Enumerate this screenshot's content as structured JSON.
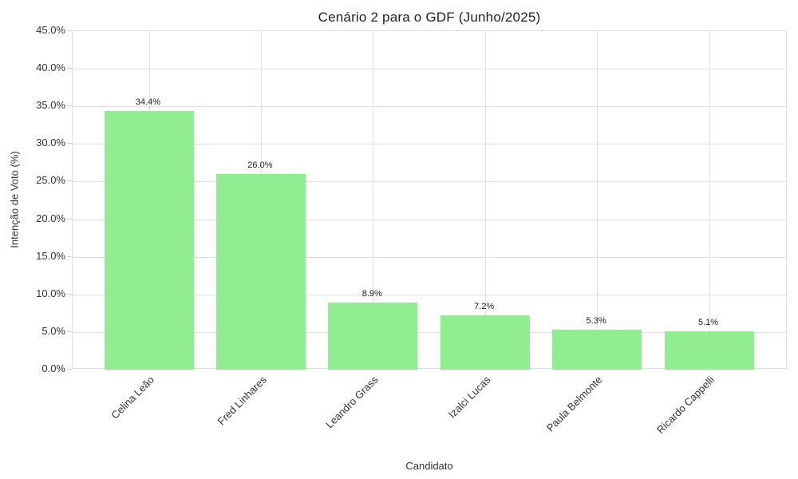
{
  "chart_data": {
    "type": "bar",
    "title": "Cenário 2 para o GDF (Junho/2025)",
    "xlabel": "Candidato",
    "ylabel": "Intenção de Voto (%)",
    "categories": [
      "Celina Leão",
      "Fred Linhares",
      "Leandro Grass",
      "Izalci Lucas",
      "Paula Belmonte",
      "Ricardo Cappelli"
    ],
    "values": [
      34.4,
      26.0,
      8.9,
      7.2,
      5.3,
      5.1
    ],
    "value_labels": [
      "34.4%",
      "26.0%",
      "8.9%",
      "7.2%",
      "5.3%",
      "5.1%"
    ],
    "ylim": [
      0,
      45
    ],
    "ytick_values": [
      0,
      5,
      10,
      15,
      20,
      25,
      30,
      35,
      40,
      45
    ],
    "ytick_labels": [
      "0.0%",
      "5.0%",
      "10.0%",
      "15.0%",
      "20.0%",
      "25.0%",
      "30.0%",
      "35.0%",
      "40.0%",
      "45.0%"
    ],
    "grid": true,
    "legend": "none",
    "bar_color": "#90EE90",
    "grid_color": "#e0e0e0",
    "tick_text_color": "#333333",
    "title_color": "#212121",
    "background_color": "#ffffff"
  }
}
